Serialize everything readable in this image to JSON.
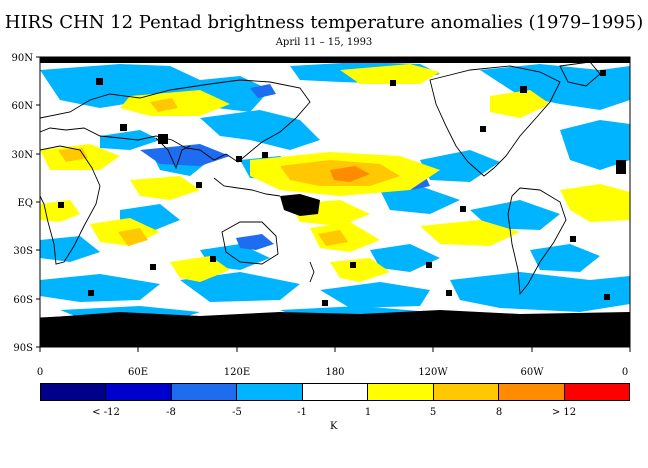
{
  "title": "HIRS CHN 12 Pentad brightness temperature anomalies (1979–1995)",
  "subtitle": "April 11 – 15, 1993",
  "lat_labels": [
    "90N",
    "60N",
    "30N",
    "EQ",
    "30S",
    "60S",
    "90S"
  ],
  "lon_labels": [
    "0",
    "60E",
    "120E",
    "180",
    "120W",
    "60W",
    "0"
  ],
  "colorbar": {
    "colors": [
      "#00008b",
      "#0000cd",
      "#1e6cf0",
      "#00b4ff",
      "#ffffff",
      "#ffff00",
      "#ffc800",
      "#ff8c00",
      "#ff0000"
    ],
    "labels": [
      "< -12",
      "-8",
      "-5",
      "-1",
      "1",
      "5",
      "8",
      "> 12"
    ],
    "unit": "K"
  },
  "map": {
    "missing_color": "#000000",
    "land_outline_color": "#000000"
  }
}
